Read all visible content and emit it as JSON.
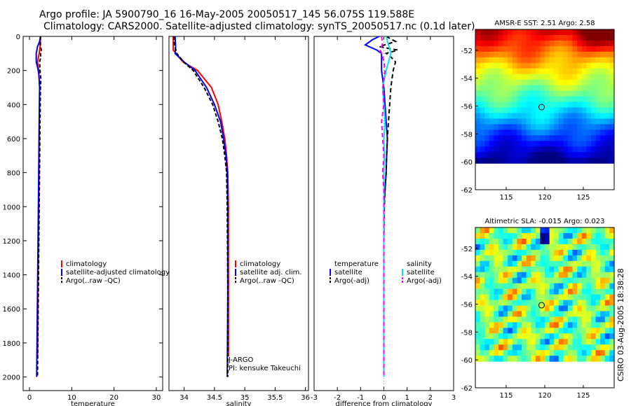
{
  "header": {
    "line1": "Argo profile: JA 5900790_16 16-May-2005 20050517_145 56.075S 119.588E",
    "line2": "Climatology: CARS2000. Satellite-adjusted climatology: synTS_20050517.nc (0.1d later)"
  },
  "colors": {
    "climatology": "#ff0000",
    "satellite": "#0000ff",
    "argo": "#000000",
    "salinity_satellite": "#00e5ee",
    "salinity_argo": "#ff00ff"
  },
  "chart_data": [
    {
      "type": "line",
      "id": "temperature",
      "xlabel": "temperature",
      "ylabel": "",
      "xlim": [
        -1.5,
        31.5
      ],
      "ylim": [
        0,
        2080
      ],
      "y_reversed": true,
      "xticks": [
        0,
        10,
        20,
        30
      ],
      "xtick_labels": [
        "0",
        "10",
        "20",
        "30"
      ],
      "yticks": [
        0,
        200,
        400,
        600,
        800,
        1000,
        1200,
        1400,
        1600,
        1800,
        2000
      ],
      "ytick_labels": [
        "0",
        "200",
        "400",
        "600",
        "800",
        "1000",
        "1200",
        "1400",
        "1600",
        "1800",
        "2000"
      ],
      "legend": [
        "climatology",
        "satellite-adjusted climatology",
        "Argo(..raw -QC)"
      ],
      "legend_position": "right",
      "series": [
        {
          "name": "climatology",
          "color": "#ff0000",
          "dash": "",
          "depth": [
            0,
            60,
            100,
            150,
            200,
            300,
            500,
            1000,
            1500,
            1880
          ],
          "values": [
            2.6,
            2.5,
            2.3,
            1.9,
            2.2,
            2.4,
            2.3,
            2.2,
            2.0,
            1.9
          ]
        },
        {
          "name": "satellite-adjusted climatology",
          "color": "#0000ff",
          "dash": "",
          "depth": [
            0,
            30,
            60,
            100,
            150,
            180,
            220,
            300,
            500,
            1000,
            1500,
            2000
          ],
          "values": [
            2.6,
            2.4,
            1.9,
            1.6,
            1.6,
            1.9,
            2.2,
            2.4,
            2.3,
            2.1,
            1.9,
            1.7
          ]
        },
        {
          "name": "Argo(..raw -QC)",
          "color": "#000000",
          "dash": "5,3",
          "depth": [
            0,
            50,
            80,
            100,
            120,
            150,
            200,
            250,
            300,
            500,
            1000,
            1500,
            2000
          ],
          "values": [
            2.6,
            2.6,
            2.8,
            2.6,
            2.7,
            2.4,
            2.5,
            2.7,
            2.6,
            2.5,
            2.3,
            2.1,
            1.9
          ]
        }
      ]
    },
    {
      "type": "line",
      "id": "salinity",
      "xlabel": "salinity",
      "ylabel": "",
      "xlim": [
        33.75,
        36.05
      ],
      "ylim": [
        0,
        2080
      ],
      "y_reversed": true,
      "xticks": [
        34,
        34.5,
        35,
        35.5,
        36
      ],
      "xtick_labels": [
        "34",
        "34.5",
        "35",
        "35.5",
        "36"
      ],
      "yticks": [],
      "ytick_labels": [],
      "legend": [
        "climatology",
        "satellite adj. clim.",
        "Argo(..raw -QC)"
      ],
      "legend_position": "right",
      "annotations": [
        "J-ARGO",
        "PI: kensuke Takeuchi"
      ],
      "series": [
        {
          "name": "climatology",
          "color": "#ff0000",
          "dash": "",
          "depth": [
            0,
            80,
            150,
            200,
            300,
            400,
            500,
            600,
            700,
            800,
            1000,
            1500,
            1880
          ],
          "values": [
            33.82,
            33.82,
            33.98,
            34.22,
            34.45,
            34.56,
            34.62,
            34.67,
            34.7,
            34.72,
            34.73,
            34.73,
            34.73
          ]
        },
        {
          "name": "satellite adj. clim.",
          "color": "#0000ff",
          "dash": "",
          "depth": [
            0,
            60,
            100,
            150,
            200,
            300,
            400,
            500,
            600,
            700,
            800,
            1000,
            1500,
            2000
          ],
          "values": [
            33.85,
            33.86,
            33.85,
            34.0,
            34.18,
            34.37,
            34.5,
            34.6,
            34.65,
            34.69,
            34.71,
            34.72,
            34.72,
            34.71
          ]
        },
        {
          "name": "Argo(..raw -QC)",
          "color": "#000000",
          "dash": "5,3",
          "depth": [
            0,
            30,
            60,
            100,
            150,
            200,
            300,
            400,
            500,
            600,
            700,
            800,
            1000,
            1500,
            2000
          ],
          "values": [
            33.83,
            33.83,
            33.85,
            33.88,
            33.99,
            34.15,
            34.33,
            34.47,
            34.56,
            34.63,
            34.67,
            34.7,
            34.71,
            34.72,
            34.72
          ]
        }
      ]
    },
    {
      "type": "line",
      "id": "difference",
      "xlabel": "difference from climatology",
      "ylabel": "",
      "xlim": [
        -3,
        3
      ],
      "ylim": [
        0,
        2080
      ],
      "y_reversed": true,
      "xticks": [
        -3,
        -2,
        -1,
        0,
        1,
        2,
        3
      ],
      "xtick_labels": [
        "-3",
        "-2",
        "-1",
        "0",
        "1",
        "2",
        "3"
      ],
      "yticks": [],
      "ytick_labels": [],
      "legend": [
        "temperature",
        "satellite",
        "Argo(-adj)",
        "salinity",
        "satellite",
        "Argo(-adj)"
      ],
      "legend_position": "center",
      "series": [
        {
          "name": "temperature satellite",
          "color": "#0000ff",
          "dash": "",
          "depth": [
            0,
            20,
            50,
            80,
            100,
            150,
            200,
            250,
            300,
            400,
            500,
            600,
            700,
            800,
            900,
            1000,
            1200,
            2000
          ],
          "values": [
            -0.2,
            -0.5,
            -0.8,
            -0.3,
            -0.1,
            -0.1,
            -0.1,
            -0.05,
            0.0,
            0.05,
            0.1,
            0.15,
            0.12,
            0.1,
            0.05,
            0.0,
            0.0,
            0.0
          ]
        },
        {
          "name": "temperature Argo(-adj)",
          "color": "#000000",
          "dash": "6,4",
          "depth": [
            0,
            30,
            60,
            80,
            100,
            120,
            150,
            200,
            250,
            300,
            400,
            500,
            600,
            700,
            800,
            900,
            1000,
            1200,
            2000
          ],
          "values": [
            0.1,
            0.5,
            -0.2,
            0.6,
            0.1,
            0.3,
            0.5,
            0.4,
            0.35,
            0.3,
            0.25,
            0.2,
            0.15,
            0.12,
            0.1,
            0.05,
            0.02,
            0.0,
            0.0
          ]
        },
        {
          "name": "salinity satellite",
          "color": "#00e5ee",
          "dash": "",
          "depth": [
            0,
            50,
            100,
            150,
            200,
            300,
            400,
            500,
            600,
            700,
            800,
            900,
            1000,
            1200,
            2000
          ],
          "values": [
            0.1,
            0.2,
            0.3,
            0.2,
            0.1,
            -0.05,
            0.0,
            0.05,
            0.0,
            0.02,
            0.0,
            0.01,
            0.0,
            0.0,
            0.0
          ]
        },
        {
          "name": "salinity Argo(-adj)",
          "color": "#ff00ff",
          "dash": "6,4",
          "depth": [
            0,
            40,
            80,
            120,
            150,
            200,
            300,
            400,
            500,
            600,
            700,
            800,
            900,
            1000,
            1200,
            2000
          ],
          "values": [
            -0.1,
            -0.05,
            -0.15,
            -0.05,
            0.0,
            0.05,
            -0.05,
            0.0,
            -0.1,
            -0.05,
            0.0,
            -0.05,
            0.0,
            0.0,
            0.0,
            0.0
          ]
        }
      ]
    },
    {
      "type": "heatmap",
      "id": "sst-map",
      "title": "AMSR-E SST: 2.51 Argo: 2.58",
      "xlabel": "",
      "ylabel": "",
      "xlim": [
        111,
        129
      ],
      "ylim": [
        -62,
        -50.5
      ],
      "xticks": [
        115,
        120,
        125
      ],
      "xtick_labels": [
        "115",
        "120",
        "125"
      ],
      "yticks": [
        -62,
        -60,
        -58,
        -56,
        -54,
        -52
      ],
      "ytick_labels": [
        "-62",
        "-60",
        "-58",
        "-56",
        "-54",
        "-52"
      ],
      "data_ylim": [
        -60.1,
        -50.5
      ],
      "marker": {
        "lon": 119.588,
        "lat": -56.075
      },
      "value_range": [
        -1.5,
        7
      ],
      "rows": 24,
      "cols": 30
    },
    {
      "type": "heatmap",
      "id": "sla-map",
      "title": "Altimetric SLA: -0.015 Argo: 0.023",
      "xlabel": "",
      "ylabel": "",
      "xlim": [
        111,
        129
      ],
      "ylim": [
        -62,
        -50.5
      ],
      "xticks": [
        115,
        120,
        125
      ],
      "xtick_labels": [
        "115",
        "120",
        "125"
      ],
      "yticks": [
        -62,
        -60,
        -58,
        -56,
        -54,
        -52
      ],
      "ytick_labels": [
        "-62",
        "-60",
        "-58",
        "-56",
        "-54",
        "-52"
      ],
      "data_ylim": [
        -60.1,
        -50.5
      ],
      "marker": {
        "lon": 119.588,
        "lat": -56.075
      },
      "value_range": [
        -0.3,
        0.3
      ],
      "rows": 24,
      "cols": 30
    }
  ],
  "footer": {
    "stamp": "CSIRO 03-Aug-2005 18:38:28"
  }
}
